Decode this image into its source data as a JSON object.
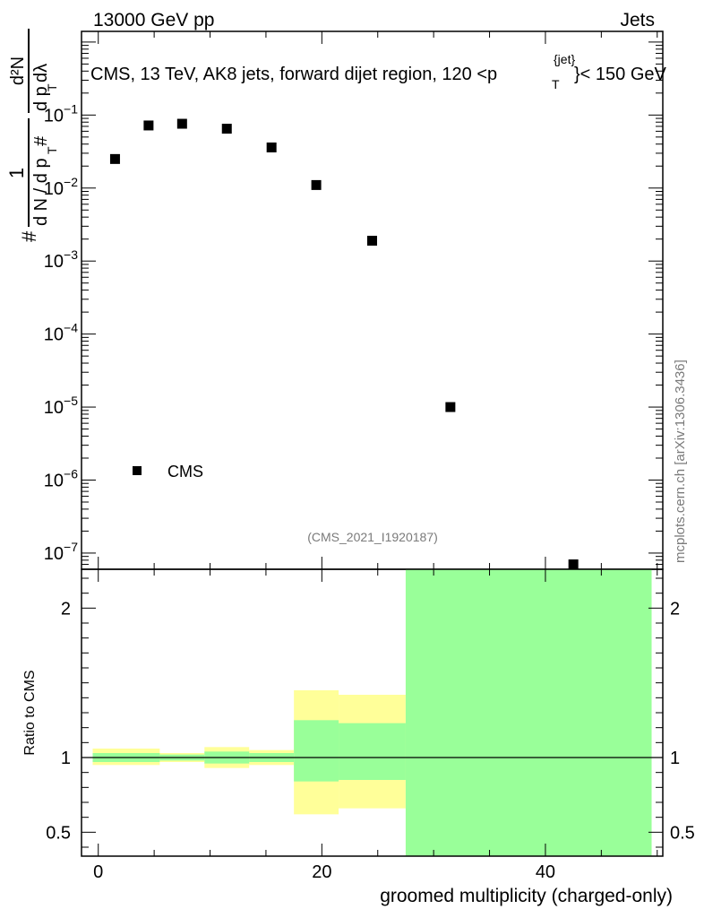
{
  "header": {
    "left": "13000 GeV pp",
    "right": "Jets"
  },
  "side_label": "mcplots.cern.ch [arXiv:1306.3436]",
  "chart_data": [
    {
      "type": "scatter",
      "title_prefix": "CMS, 13 TeV, AK8 jets, forward dijet region, 120 <p",
      "title_sup": "{jet}",
      "title_sub": "T",
      "title_suffix": "}< 150 GeV",
      "ylabel": {
        "prefix": "#",
        "frac1_num": "1",
        "frac1_den": "d N / d p",
        "frac1_den_sub": "T",
        "frac1_den_suffix": " #",
        "frac2_num": "d²N",
        "frac2_den": "d p",
        "frac2_den_sub": "T",
        "frac2_den_suffix": " dλ"
      },
      "yscale": "log",
      "ylim": [
        6e-08,
        1.4
      ],
      "xlim": [
        -1.5,
        50.5
      ],
      "y_tick_labels": [
        {
          "base": "10",
          "exp": "−1",
          "value": 0.1
        },
        {
          "base": "10",
          "exp": "−2",
          "value": 0.01
        },
        {
          "base": "10",
          "exp": "−3",
          "value": 0.001
        },
        {
          "base": "10",
          "exp": "−4",
          "value": 0.0001
        },
        {
          "base": "10",
          "exp": "−5",
          "value": 1e-05
        },
        {
          "base": "10",
          "exp": "−6",
          "value": 1e-06
        },
        {
          "base": "10",
          "exp": "−7",
          "value": 1e-07
        }
      ],
      "series": [
        {
          "name": "CMS",
          "color": "#000000",
          "marker": "square",
          "points": [
            {
              "x": 1.5,
              "y": 0.025
            },
            {
              "x": 4.5,
              "y": 0.072
            },
            {
              "x": 7.5,
              "y": 0.076
            },
            {
              "x": 11.5,
              "y": 0.065
            },
            {
              "x": 15.5,
              "y": 0.036
            },
            {
              "x": 19.5,
              "y": 0.011
            },
            {
              "x": 24.5,
              "y": 0.0019
            },
            {
              "x": 31.5,
              "y": 1e-05
            },
            {
              "x": 42.5,
              "y": 7e-08
            }
          ]
        }
      ],
      "legend": {
        "label": "CMS",
        "position": "lower-left"
      },
      "watermark": "(CMS_2021_I1920187)"
    },
    {
      "type": "area",
      "ylabel": "Ratio to CMS",
      "xlabel": "groomed multiplicity (charged-only)",
      "xlim": [
        -1.5,
        50.5
      ],
      "ylim": [
        0.34,
        2.26
      ],
      "x_ticks": [
        0,
        20,
        40
      ],
      "y_ticks": [
        0.5,
        1,
        2
      ],
      "reference_line": 1,
      "colors": {
        "total_band": "#ffff99",
        "stat_band": "#99ff99"
      },
      "bins": [
        {
          "x0": -0.5,
          "x1": 5.5,
          "stat": [
            0.97,
            1.03
          ],
          "total": [
            0.95,
            1.06
          ]
        },
        {
          "x0": 5.5,
          "x1": 9.5,
          "stat": [
            0.98,
            1.02
          ],
          "total": [
            0.97,
            1.03
          ]
        },
        {
          "x0": 9.5,
          "x1": 13.5,
          "stat": [
            0.96,
            1.04
          ],
          "total": [
            0.93,
            1.07
          ]
        },
        {
          "x0": 13.5,
          "x1": 17.5,
          "stat": [
            0.97,
            1.03
          ],
          "total": [
            0.95,
            1.05
          ]
        },
        {
          "x0": 17.5,
          "x1": 21.5,
          "stat": [
            0.84,
            1.25
          ],
          "total": [
            0.62,
            1.45
          ]
        },
        {
          "x0": 21.5,
          "x1": 27.5,
          "stat": [
            0.85,
            1.23
          ],
          "total": [
            0.66,
            1.42
          ]
        },
        {
          "x0": 27.5,
          "x1": 49.5,
          "stat": [
            0.34,
            2.26
          ],
          "total": [
            0.34,
            2.26
          ]
        }
      ]
    }
  ]
}
